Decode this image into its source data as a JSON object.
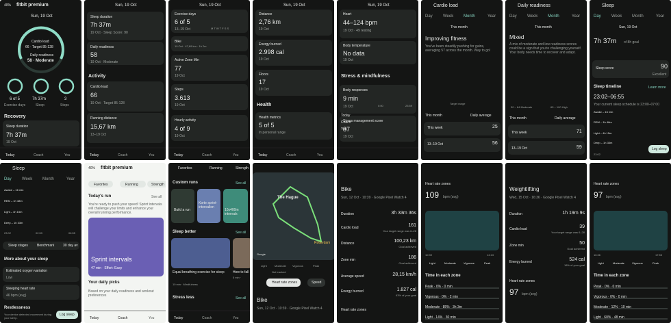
{
  "screens": [
    {
      "texts": [
        "40%",
        "fitbit premium",
        "Sun, 19 Oct",
        "Cardio load",
        "66 · Target 85-128",
        "Daily readiness",
        "58 · Moderate",
        "6 of 5",
        "7h 37m",
        "3",
        "Exercise days",
        "Sleep",
        "Steps",
        "Recovery",
        "Sleep duration",
        "7h 37m",
        "19 Oct",
        "Today",
        "Coach",
        "You"
      ]
    },
    {
      "texts": [
        "Sun, 19 Oct",
        "Sleep duration",
        "7h 37m",
        "19 Oct · Sleep Score: 90",
        "Daily readiness",
        "58",
        "19 Oct · Moderate",
        "Activity",
        "Cardio load",
        "66",
        "19 Oct · Target 85-128",
        "Running distance",
        "15,67 km",
        "13–19 Oct",
        "Today",
        "Coach",
        "You"
      ]
    },
    {
      "texts": [
        "Sun, 19 Oct",
        "Exercise days",
        "6 of 5",
        "13–19 Oct",
        "M T W T F S S",
        "Bike",
        "19 Oct · 47,69 km · 1h 2m",
        "Active Zone Min",
        "77",
        "19 Oct",
        "Steps",
        "3.613",
        "19 Oct",
        "Hourly activity",
        "4 of 9",
        "19 Oct",
        "Today",
        "Coach",
        "You"
      ]
    },
    {
      "texts": [
        "Sun, 19 Oct",
        "Distance",
        "2,76 km",
        "19 Oct",
        "Energy burned",
        "2.998 cal",
        "19 Oct",
        "Floors",
        "17",
        "19 Oct",
        "Health",
        "Health metrics",
        "5 of 5",
        "In personal range",
        "Today",
        "Coach",
        "You"
      ]
    },
    {
      "texts": [
        "Sun, 19 Oct",
        "Heart",
        "44–124 bpm",
        "19 Oct · 49 resting",
        "Body temperature",
        "No data",
        "19 Oct",
        "Stress & mindfulness",
        "Body responses",
        "9 min",
        "19 Oct",
        "0:00",
        "23:59",
        "Stress management score",
        "87",
        "19 Oct",
        "Today",
        "Coach",
        "You"
      ]
    },
    {
      "texts": [
        "Cardio load",
        "Day",
        "Week",
        "Month",
        "Year",
        "This month",
        "Improving fitness",
        "You've been steadily pushing for gains, averaging 57 across the month. Way to go!",
        "Target range",
        "This month",
        "Daily average",
        "This week",
        "25",
        "13–19 Oct",
        "56"
      ]
    },
    {
      "texts": [
        "Daily readiness",
        "Day",
        "Week",
        "Month",
        "Year",
        "This month",
        "Mixed",
        "A mix of moderate and low readiness scores could be a sign that you're challenging yourself. Your body needs time to recover and adapt.",
        "30 – 64 Moderate",
        "65 – 100 High",
        "This month",
        "Daily average",
        "This week",
        "71",
        "13–19 Oct",
        "59"
      ]
    },
    {
      "texts": [
        "Sleep",
        "Day",
        "Week",
        "Month",
        "Year",
        "Sun, 19 Oct",
        "7h 37m",
        "of 8h goal",
        "Sleep score",
        "90",
        "Excellent",
        "Sleep timeline",
        "Learn more",
        "23:02–06:55",
        "Your current sleep schedule is 23:00–07:00",
        "Awake – 16 min",
        "REM – 1h 48m",
        "Light – 4h 15m",
        "Deep – 1h 33m",
        "23:02",
        "Log sleep"
      ]
    },
    {
      "texts": [
        "Sleep",
        "Day",
        "Week",
        "Month",
        "Year",
        "Awake – 16 min",
        "REM – 1h 48m",
        "Light – 4h 15m",
        "Deep – 1h 33m",
        "23:02",
        "02:59",
        "06:55",
        "Sleep stages",
        "Benchmark",
        "30 day av",
        "More about your sleep",
        "Estimated oxygen variation",
        "Low",
        "Sleeping heart rate",
        "46 bpm (avg)",
        "Restlessness",
        "Your device detected movement during your sleep.",
        "Log sleep"
      ]
    },
    {
      "texts": [
        "40%",
        "fitbit premium",
        "Favorites",
        "Running",
        "Strength",
        "Today's run",
        "See all",
        "You're ready to push your speed! Sprint intervals will challenge your limits and enhance your overall running performance.",
        "Sprint intervals",
        "47 min · Effort: Easy",
        "Your daily picks",
        "Based on your daily readiness and workout preferences",
        "Today",
        "Coach",
        "You"
      ]
    },
    {
      "texts": [
        "Favorites",
        "Running",
        "Strength",
        "Custom runs",
        "See all",
        "Build a run",
        "Korte sprint-intervallen",
        "10x400m intervals",
        "Sleep better",
        "See all",
        "Equal breathing exercise for sleep",
        "10 min · Mindfulness",
        "How to fall a",
        "5 min ·",
        "Stress less",
        "See all",
        "Today",
        "Coach",
        "You"
      ]
    },
    {
      "texts": [
        "The Hague",
        "Rotterdam",
        "Google",
        "Light",
        "Moderate",
        "Vigorous",
        "Peak",
        "Not tracked",
        "Heart rate zones",
        "Speed",
        "Bike",
        "Sun, 12 Oct · 10:39 · Google Pixel Watch 4"
      ]
    },
    {
      "texts": [
        "Bike",
        "Sun, 12 Oct · 10:39 · Google Pixel Watch 4",
        "Duration",
        "3h 33m 36s",
        "Cardio load",
        "161",
        "Your target range was 6–28",
        "Distance",
        "100,23 km",
        "Goal achieved",
        "Zone min",
        "186",
        "Goal achieved",
        "Average speed",
        "28,15 km/h",
        "Energy burned",
        "1.827 cal",
        "63% of your goal",
        "Heart rate zones"
      ]
    },
    {
      "texts": [
        "Heart rate zones",
        "109",
        "bpm (avg)",
        "10:39",
        "14:13",
        "Light",
        "Moderate",
        "Vigorous",
        "Peak",
        "Time in each zone",
        "Peak · 0% · 0 min",
        "Vigorous · 0% · 2 min",
        "Moderate · 85% · 3h 3m",
        "Light · 14% · 30 min"
      ]
    },
    {
      "texts": [
        "Weightlifting",
        "Wed, 15 Oct · 16:36 · Google Pixel Watch 4",
        "Duration",
        "1h 19m 9s",
        "Cardio load",
        "39",
        "Your target range was 6–28",
        "Zone min",
        "50",
        "Goal achieved",
        "Energy burned",
        "524 cal",
        "18% of your goal",
        "Heart rate zones",
        "97",
        "bpm (avg)"
      ]
    },
    {
      "texts": [
        "Heart rate zones",
        "97",
        "bpm (avg)",
        "16:36",
        "17:55",
        "Light",
        "Moderate",
        "Vigorous",
        "Peak",
        "Time in each zone",
        "Peak · 0% · 0 min",
        "Vigorous · 0% · 0 min",
        "Moderate · 12% · 10 min",
        "Light · 60% · 48 min"
      ]
    }
  ]
}
